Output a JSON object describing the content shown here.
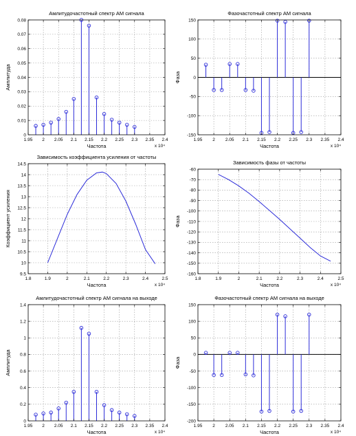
{
  "chart_data": [
    {
      "type": "stem",
      "title": "Амлитудочастотный спектр АМ сигнала",
      "xlabel": "Частота",
      "ylabel": "Амплитуда",
      "xlim": [
        19500,
        24000
      ],
      "ylim": [
        0,
        0.08
      ],
      "xticks": [
        19500,
        20000,
        20500,
        21000,
        21500,
        22000,
        22500,
        23000,
        23500,
        24000
      ],
      "xticklabels": [
        "1.95",
        "2",
        "2.05",
        "2.1",
        "2.15",
        "2.2",
        "2.25",
        "2.3",
        "2.35",
        "2.4"
      ],
      "yticks": [
        0,
        0.01,
        0.02,
        0.03,
        0.04,
        0.05,
        0.06,
        0.07,
        0.08
      ],
      "yticklabels": [
        "0",
        "0.01",
        "0.02",
        "0.03",
        "0.04",
        "0.05",
        "0.06",
        "0.07",
        "0.08"
      ],
      "exponent": "x 10⁴",
      "grid": true,
      "x": [
        19750,
        19875,
        20000,
        20125,
        20250,
        20375,
        20500,
        20625,
        20750,
        20875,
        21000,
        21125,
        21250,
        21375,
        21500,
        21625,
        21750,
        21875,
        22000,
        22125,
        22250,
        22375,
        22500,
        22625,
        22750,
        22875,
        23000,
        23125,
        23250,
        23375,
        23500,
        23625,
        23750,
        23875
      ],
      "y": [
        0,
        0,
        0,
        0,
        0,
        0,
        0,
        0,
        0,
        0,
        0,
        0,
        0,
        0,
        0,
        0,
        0,
        0,
        0,
        0,
        0,
        0,
        0,
        0,
        0,
        0,
        0,
        0,
        0,
        0,
        0,
        0,
        0,
        0
      ],
      "points": [
        [
          19750,
          0.0062
        ],
        [
          20000,
          0.007
        ],
        [
          20250,
          0.0085
        ],
        [
          20500,
          0.011
        ],
        [
          20750,
          0.016
        ],
        [
          21000,
          0.025
        ],
        [
          21250,
          0.08
        ],
        [
          21500,
          0.076
        ],
        [
          21750,
          0.026
        ],
        [
          22000,
          0.0145
        ],
        [
          22250,
          0.0105
        ],
        [
          22500,
          0.0085
        ],
        [
          22750,
          0.007
        ],
        [
          23000,
          0.0055
        ]
      ]
    },
    {
      "type": "stem",
      "title": "Фазочастотный спектр АМ сигнала",
      "xlabel": "Частота",
      "ylabel": "Фаза",
      "xlim": [
        19500,
        24000
      ],
      "ylim": [
        -150,
        150
      ],
      "xticks": [
        19500,
        20000,
        20500,
        21000,
        21500,
        22000,
        22500,
        23000,
        23500,
        24000
      ],
      "xticklabels": [
        "1.95",
        "2",
        "2.05",
        "2.1",
        "2.15",
        "2.2",
        "2.25",
        "2.3",
        "2.35",
        "2.4"
      ],
      "yticks": [
        -150,
        -100,
        -50,
        0,
        50,
        100,
        150
      ],
      "yticklabels": [
        "-150",
        "-100",
        "-50",
        "0",
        "50",
        "100",
        "150"
      ],
      "exponent": "x 10⁴",
      "grid": true,
      "points": [
        [
          19750,
          33
        ],
        [
          20000,
          -33
        ],
        [
          20250,
          -33
        ],
        [
          20500,
          35
        ],
        [
          20750,
          35
        ],
        [
          21000,
          -33
        ],
        [
          21250,
          -35
        ],
        [
          21500,
          -145
        ],
        [
          21750,
          -143
        ],
        [
          22000,
          148
        ],
        [
          22250,
          145
        ],
        [
          22500,
          -145
        ],
        [
          22750,
          -143
        ],
        [
          23000,
          148
        ]
      ]
    },
    {
      "type": "line",
      "title": "Зависимость коэффициента усиления от частоты",
      "xlabel": "Частота",
      "ylabel": "Коэффициент усиления",
      "xlim": [
        18000,
        25000
      ],
      "ylim": [
        9.5,
        14.5
      ],
      "xticks": [
        18000,
        19000,
        20000,
        21000,
        22000,
        23000,
        24000,
        25000
      ],
      "xticklabels": [
        "1.8",
        "1.9",
        "2",
        "2.1",
        "2.2",
        "2.3",
        "2.4",
        "2.5"
      ],
      "yticks": [
        9.5,
        10,
        10.5,
        11,
        11.5,
        12,
        12.5,
        13,
        13.5,
        14,
        14.5
      ],
      "yticklabels": [
        "9.5",
        "10",
        "10.5",
        "11",
        "11.5",
        "12",
        "12.5",
        "13",
        "13.5",
        "14",
        "14.5"
      ],
      "exponent": "x 10⁴",
      "grid": true,
      "series": [
        {
          "x": [
            19000,
            19500,
            20000,
            20500,
            21000,
            21500,
            21800,
            22000,
            22500,
            23000,
            23500,
            24000,
            24500
          ],
          "values": [
            10.0,
            11.1,
            12.2,
            13.1,
            13.75,
            14.08,
            14.12,
            14.05,
            13.6,
            12.8,
            11.75,
            10.6,
            9.95
          ]
        }
      ]
    },
    {
      "type": "line",
      "title": "Зависимость фазы от частоты",
      "xlabel": "Частота",
      "ylabel": "Фаза",
      "xlim": [
        18000,
        25000
      ],
      "ylim": [
        -160,
        -60
      ],
      "xticks": [
        18000,
        19000,
        20000,
        21000,
        22000,
        23000,
        24000,
        25000
      ],
      "xticklabels": [
        "1.8",
        "1.9",
        "2",
        "2.1",
        "2.2",
        "2.3",
        "2.4",
        "2.5"
      ],
      "yticks": [
        -160,
        -150,
        -140,
        -130,
        -120,
        -110,
        -100,
        -90,
        -80,
        -70,
        -60
      ],
      "yticklabels": [
        "-160",
        "-150",
        "-140",
        "-130",
        "-120",
        "-110",
        "-100",
        "-90",
        "-80",
        "-70",
        "-60"
      ],
      "exponent": "x 10⁴",
      "grid": true,
      "series": [
        {
          "x": [
            19000,
            19500,
            20000,
            20500,
            21000,
            21500,
            22000,
            22500,
            23000,
            23500,
            24000,
            24500
          ],
          "values": [
            -65,
            -70,
            -76,
            -83,
            -91,
            -99.5,
            -108,
            -117,
            -126,
            -135,
            -143,
            -148
          ]
        }
      ]
    },
    {
      "type": "stem",
      "title": "Амлитудочастотный спектр АМ сигнала на выходе",
      "xlabel": "Частота",
      "ylabel": "Амплитуда",
      "xlim": [
        19500,
        24000
      ],
      "ylim": [
        0,
        1.4
      ],
      "xticks": [
        19500,
        20000,
        20500,
        21000,
        21500,
        22000,
        22500,
        23000,
        23500,
        24000
      ],
      "xticklabels": [
        "1.95",
        "2",
        "2.05",
        "2.1",
        "2.15",
        "2.2",
        "2.25",
        "2.3",
        "2.35",
        "2.4"
      ],
      "yticks": [
        0,
        0.2,
        0.4,
        0.6,
        0.8,
        1,
        1.2,
        1.4
      ],
      "yticklabels": [
        "0",
        "0.2",
        "0.4",
        "0.6",
        "0.8",
        "1",
        "1.2",
        "1.4"
      ],
      "exponent": "x 10⁴",
      "grid": true,
      "points": [
        [
          19750,
          0.075
        ],
        [
          20000,
          0.09
        ],
        [
          20250,
          0.1
        ],
        [
          20500,
          0.15
        ],
        [
          20750,
          0.22
        ],
        [
          21000,
          0.35
        ],
        [
          21250,
          1.12
        ],
        [
          21500,
          1.05
        ],
        [
          21750,
          0.35
        ],
        [
          22000,
          0.19
        ],
        [
          22250,
          0.13
        ],
        [
          22500,
          0.1
        ],
        [
          22750,
          0.08
        ],
        [
          23000,
          0.06
        ]
      ]
    },
    {
      "type": "stem",
      "title": "Фазочастотный спектр АМ сигнала на выходе",
      "xlabel": "Частота",
      "ylabel": "Фаза",
      "xlim": [
        19500,
        24000
      ],
      "ylim": [
        -200,
        150
      ],
      "xticks": [
        19500,
        20000,
        20500,
        21000,
        21500,
        22000,
        22500,
        23000,
        23500,
        24000
      ],
      "xticklabels": [
        "1.95",
        "2",
        "2.05",
        "2.1",
        "2.15",
        "2.2",
        "2.25",
        "2.3",
        "2.35",
        "2.4"
      ],
      "yticks": [
        -200,
        -150,
        -100,
        -50,
        0,
        50,
        100,
        150
      ],
      "yticklabels": [
        "-200",
        "-150",
        "-100",
        "-50",
        "0",
        "50",
        "100",
        "150"
      ],
      "exponent": "x 10⁴",
      "grid": true,
      "points": [
        [
          19750,
          5
        ],
        [
          20000,
          -62
        ],
        [
          20250,
          -62
        ],
        [
          20500,
          5
        ],
        [
          20750,
          5
        ],
        [
          21000,
          -60
        ],
        [
          21250,
          -63
        ],
        [
          21500,
          -172
        ],
        [
          21750,
          -170
        ],
        [
          22000,
          120
        ],
        [
          22250,
          115
        ],
        [
          22500,
          -172
        ],
        [
          22750,
          -170
        ],
        [
          23000,
          120
        ]
      ]
    }
  ]
}
